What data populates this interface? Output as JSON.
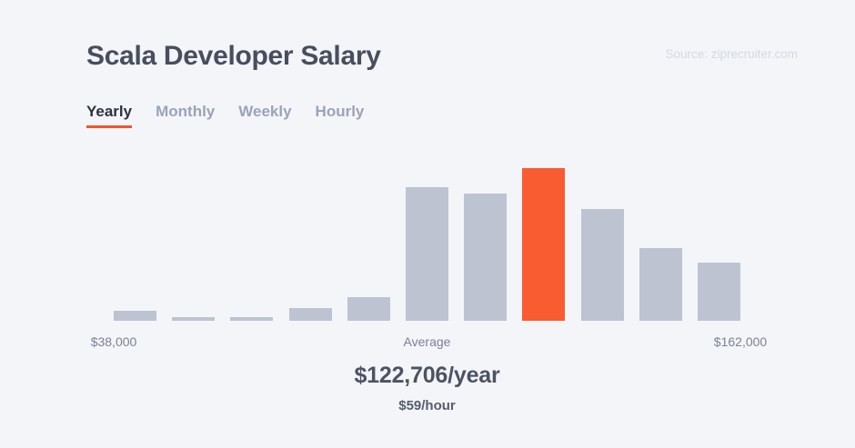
{
  "colors": {
    "background": "#f4f5f9",
    "title": "#494e5e",
    "tab_active": "#2d3241",
    "tab_inactive": "#9ba3b8",
    "accent_underline": "#f4512c",
    "bar": "#bdc3d1",
    "bar_highlight": "#f95c30",
    "axis_label": "#7b8196",
    "value_primary": "#4d5263",
    "value_secondary": "#575c6e",
    "source_text": "#d4d8e4"
  },
  "header": {
    "title": "Scala Developer Salary",
    "source": "Source: ziprecruiter.com"
  },
  "tabs": [
    {
      "label": "Yearly",
      "active": true
    },
    {
      "label": "Monthly",
      "active": false
    },
    {
      "label": "Weekly",
      "active": false
    },
    {
      "label": "Hourly",
      "active": false
    }
  ],
  "chart_data": {
    "type": "bar",
    "title": "Scala Developer Salary",
    "subtitle_period": "Yearly",
    "x_range_labels": [
      "$38,000",
      "$162,000"
    ],
    "x_mid_label": "Average",
    "grid": false,
    "legend": false,
    "bar_count": 11,
    "relative_heights_pct": [
      6.5,
      2.4,
      2.4,
      8.3,
      15.5,
      87.5,
      83.3,
      100,
      73.2,
      47.6,
      38.1
    ],
    "highlight_index": 7,
    "highlight_meaning": "bin containing the average salary"
  },
  "summary": {
    "average_label": "Average",
    "average_yearly": "$122,706/year",
    "average_hourly": "$59/hour"
  },
  "axis": {
    "min": "$38,000",
    "mid": "Average",
    "max": "$162,000"
  }
}
